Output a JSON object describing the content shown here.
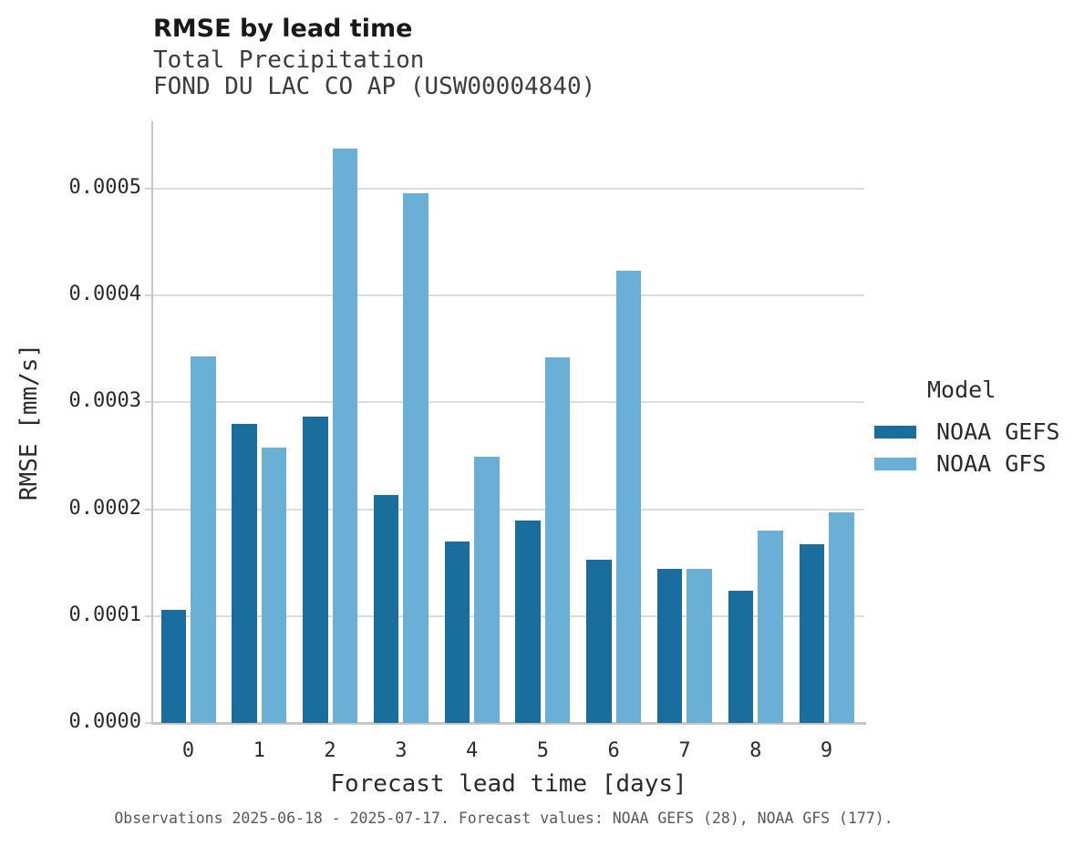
{
  "chart_data": {
    "type": "bar",
    "title": "RMSE by lead time",
    "subtitle": "Total Precipitation",
    "station": "FOND DU LAC CO AP (USW00004840)",
    "xlabel": "Forecast lead time [days]",
    "ylabel": "RMSE [mm/s]",
    "legend_title": "Model",
    "legend_position": "right",
    "grid": "horizontal gridlines only",
    "categories": [
      0,
      1,
      2,
      3,
      4,
      5,
      6,
      7,
      8,
      9
    ],
    "series": [
      {
        "name": "NOAA GEFS",
        "color": "#1A6E9D",
        "values": [
          0.000106,
          0.00028,
          0.000287,
          0.000213,
          0.00017,
          0.000189,
          0.000153,
          0.000144,
          0.000124,
          0.000167
        ]
      },
      {
        "name": "NOAA GFS",
        "color": "#69AFD6",
        "values": [
          0.000343,
          0.000258,
          0.000537,
          0.000496,
          0.000249,
          0.000342,
          0.000423,
          0.000144,
          0.00018,
          0.000197
        ]
      }
    ],
    "ylim": [
      0,
      0.000563
    ],
    "yticks": [
      0,
      0.0001,
      0.0002,
      0.0003,
      0.0004,
      0.0005
    ],
    "ytick_labels": [
      "0.0000",
      "0.0001",
      "0.0002",
      "0.0003",
      "0.0004",
      "0.0005"
    ],
    "caption": "Observations 2025-06-18 - 2025-07-17. Forecast values: NOAA GEFS (28), NOAA GFS (177)."
  },
  "colors": {
    "axis_spine": "#C6C6C6",
    "gridline": "#DCDCDC",
    "title_text": "#191919",
    "subtitle_text": "#3D3D3D",
    "tick_text": "#2B2B2B",
    "caption_text": "#585858"
  }
}
